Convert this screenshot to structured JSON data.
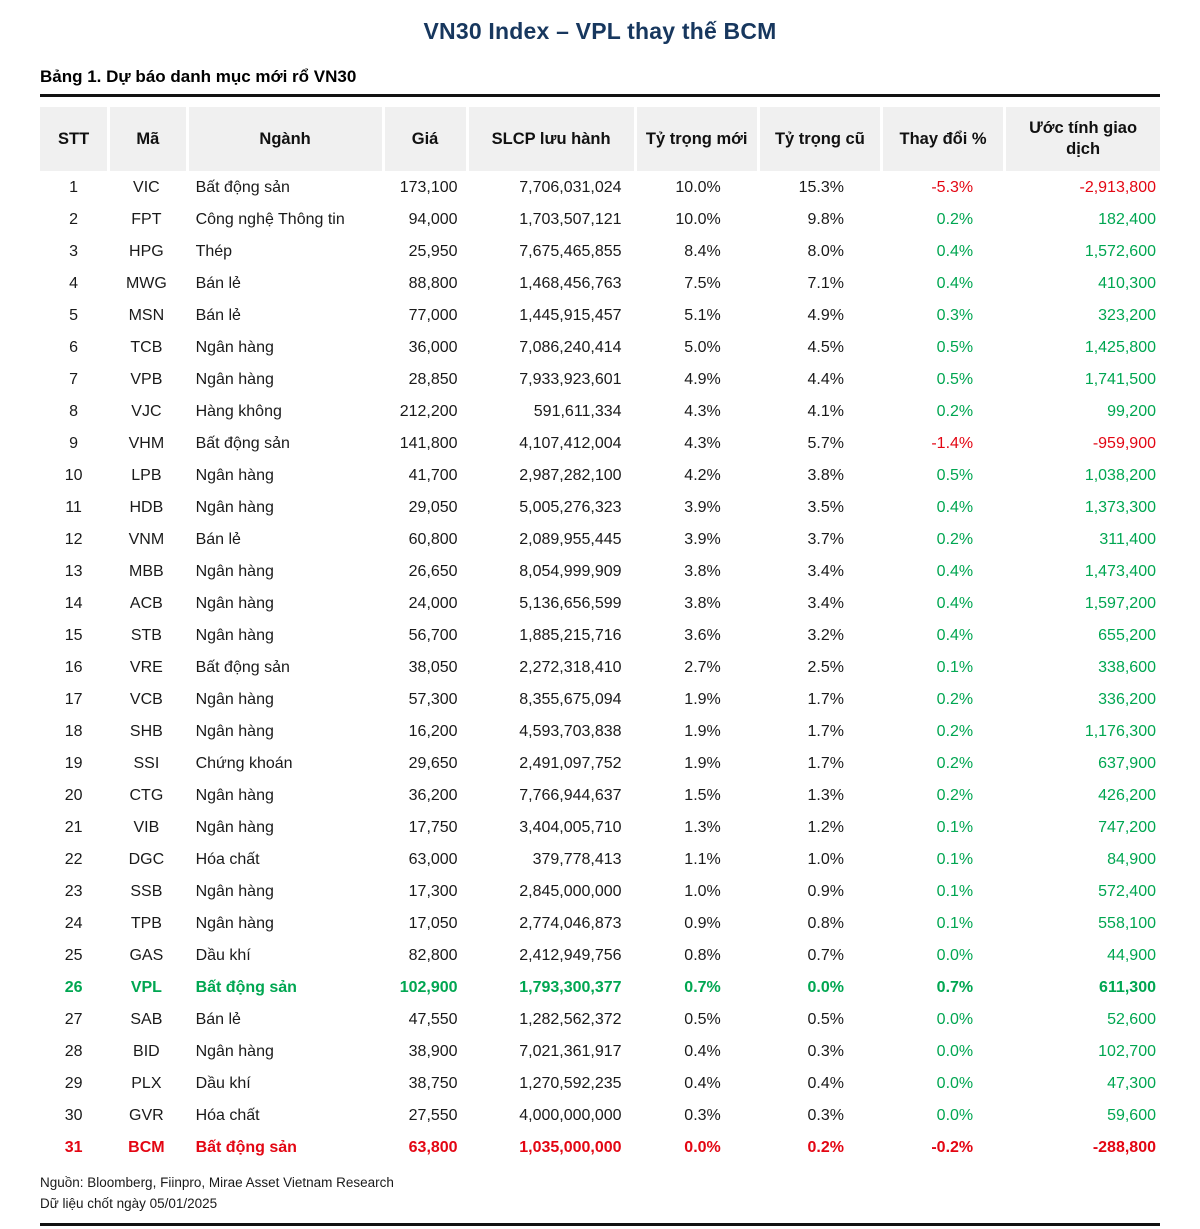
{
  "page": {
    "title": "VN30 Index – VPL thay thế BCM",
    "table_caption": "Bảng 1. Dự báo danh mục mới rổ VN30",
    "source": "Nguồn: Bloomberg, Fiinpro, Mirae Asset Vietnam Research",
    "data_date": "Dữ liệu chốt ngày 05/01/2025"
  },
  "colors": {
    "title_navy": "#17375e",
    "positive_green": "#00a651",
    "negative_red": "#e30613",
    "header_bg": "#f0f0f0"
  },
  "table": {
    "headers": [
      "STT",
      "Mã",
      "Ngành",
      "Giá",
      "SLCP lưu hành",
      "Tỷ trọng mới",
      "Tỷ trọng cũ",
      "Thay đổi %",
      "Ước tính giao dịch"
    ],
    "rows": [
      {
        "stt": "1",
        "ma": "VIC",
        "nganh": "Bất động sản",
        "gia": "173,100",
        "slcp": "7,706,031,024",
        "moi": "10.0%",
        "cu": "15.3%",
        "doi": "-5.3%",
        "uoc": "-2,913,800",
        "trend": "down",
        "highlight": ""
      },
      {
        "stt": "2",
        "ma": "FPT",
        "nganh": "Công nghệ Thông tin",
        "gia": "94,000",
        "slcp": "1,703,507,121",
        "moi": "10.0%",
        "cu": "9.8%",
        "doi": "0.2%",
        "uoc": "182,400",
        "trend": "up",
        "highlight": ""
      },
      {
        "stt": "3",
        "ma": "HPG",
        "nganh": "Thép",
        "gia": "25,950",
        "slcp": "7,675,465,855",
        "moi": "8.4%",
        "cu": "8.0%",
        "doi": "0.4%",
        "uoc": "1,572,600",
        "trend": "up",
        "highlight": ""
      },
      {
        "stt": "4",
        "ma": "MWG",
        "nganh": "Bán lẻ",
        "gia": "88,800",
        "slcp": "1,468,456,763",
        "moi": "7.5%",
        "cu": "7.1%",
        "doi": "0.4%",
        "uoc": "410,300",
        "trend": "up",
        "highlight": ""
      },
      {
        "stt": "5",
        "ma": "MSN",
        "nganh": "Bán lẻ",
        "gia": "77,000",
        "slcp": "1,445,915,457",
        "moi": "5.1%",
        "cu": "4.9%",
        "doi": "0.3%",
        "uoc": "323,200",
        "trend": "up",
        "highlight": ""
      },
      {
        "stt": "6",
        "ma": "TCB",
        "nganh": "Ngân hàng",
        "gia": "36,000",
        "slcp": "7,086,240,414",
        "moi": "5.0%",
        "cu": "4.5%",
        "doi": "0.5%",
        "uoc": "1,425,800",
        "trend": "up",
        "highlight": ""
      },
      {
        "stt": "7",
        "ma": "VPB",
        "nganh": "Ngân hàng",
        "gia": "28,850",
        "slcp": "7,933,923,601",
        "moi": "4.9%",
        "cu": "4.4%",
        "doi": "0.5%",
        "uoc": "1,741,500",
        "trend": "up",
        "highlight": ""
      },
      {
        "stt": "8",
        "ma": "VJC",
        "nganh": "Hàng không",
        "gia": "212,200",
        "slcp": "591,611,334",
        "moi": "4.3%",
        "cu": "4.1%",
        "doi": "0.2%",
        "uoc": "99,200",
        "trend": "up",
        "highlight": ""
      },
      {
        "stt": "9",
        "ma": "VHM",
        "nganh": "Bất động sản",
        "gia": "141,800",
        "slcp": "4,107,412,004",
        "moi": "4.3%",
        "cu": "5.7%",
        "doi": "-1.4%",
        "uoc": "-959,900",
        "trend": "down",
        "highlight": ""
      },
      {
        "stt": "10",
        "ma": "LPB",
        "nganh": "Ngân hàng",
        "gia": "41,700",
        "slcp": "2,987,282,100",
        "moi": "4.2%",
        "cu": "3.8%",
        "doi": "0.5%",
        "uoc": "1,038,200",
        "trend": "up",
        "highlight": ""
      },
      {
        "stt": "11",
        "ma": "HDB",
        "nganh": "Ngân hàng",
        "gia": "29,050",
        "slcp": "5,005,276,323",
        "moi": "3.9%",
        "cu": "3.5%",
        "doi": "0.4%",
        "uoc": "1,373,300",
        "trend": "up",
        "highlight": ""
      },
      {
        "stt": "12",
        "ma": "VNM",
        "nganh": "Bán lẻ",
        "gia": "60,800",
        "slcp": "2,089,955,445",
        "moi": "3.9%",
        "cu": "3.7%",
        "doi": "0.2%",
        "uoc": "311,400",
        "trend": "up",
        "highlight": ""
      },
      {
        "stt": "13",
        "ma": "MBB",
        "nganh": "Ngân hàng",
        "gia": "26,650",
        "slcp": "8,054,999,909",
        "moi": "3.8%",
        "cu": "3.4%",
        "doi": "0.4%",
        "uoc": "1,473,400",
        "trend": "up",
        "highlight": ""
      },
      {
        "stt": "14",
        "ma": "ACB",
        "nganh": "Ngân hàng",
        "gia": "24,000",
        "slcp": "5,136,656,599",
        "moi": "3.8%",
        "cu": "3.4%",
        "doi": "0.4%",
        "uoc": "1,597,200",
        "trend": "up",
        "highlight": ""
      },
      {
        "stt": "15",
        "ma": "STB",
        "nganh": "Ngân hàng",
        "gia": "56,700",
        "slcp": "1,885,215,716",
        "moi": "3.6%",
        "cu": "3.2%",
        "doi": "0.4%",
        "uoc": "655,200",
        "trend": "up",
        "highlight": ""
      },
      {
        "stt": "16",
        "ma": "VRE",
        "nganh": "Bất động sản",
        "gia": "38,050",
        "slcp": "2,272,318,410",
        "moi": "2.7%",
        "cu": "2.5%",
        "doi": "0.1%",
        "uoc": "338,600",
        "trend": "up",
        "highlight": ""
      },
      {
        "stt": "17",
        "ma": "VCB",
        "nganh": "Ngân hàng",
        "gia": "57,300",
        "slcp": "8,355,675,094",
        "moi": "1.9%",
        "cu": "1.7%",
        "doi": "0.2%",
        "uoc": "336,200",
        "trend": "up",
        "highlight": ""
      },
      {
        "stt": "18",
        "ma": "SHB",
        "nganh": "Ngân hàng",
        "gia": "16,200",
        "slcp": "4,593,703,838",
        "moi": "1.9%",
        "cu": "1.7%",
        "doi": "0.2%",
        "uoc": "1,176,300",
        "trend": "up",
        "highlight": ""
      },
      {
        "stt": "19",
        "ma": "SSI",
        "nganh": "Chứng khoán",
        "gia": "29,650",
        "slcp": "2,491,097,752",
        "moi": "1.9%",
        "cu": "1.7%",
        "doi": "0.2%",
        "uoc": "637,900",
        "trend": "up",
        "highlight": ""
      },
      {
        "stt": "20",
        "ma": "CTG",
        "nganh": "Ngân hàng",
        "gia": "36,200",
        "slcp": "7,766,944,637",
        "moi": "1.5%",
        "cu": "1.3%",
        "doi": "0.2%",
        "uoc": "426,200",
        "trend": "up",
        "highlight": ""
      },
      {
        "stt": "21",
        "ma": "VIB",
        "nganh": "Ngân hàng",
        "gia": "17,750",
        "slcp": "3,404,005,710",
        "moi": "1.3%",
        "cu": "1.2%",
        "doi": "0.1%",
        "uoc": "747,200",
        "trend": "up",
        "highlight": ""
      },
      {
        "stt": "22",
        "ma": "DGC",
        "nganh": "Hóa chất",
        "gia": "63,000",
        "slcp": "379,778,413",
        "moi": "1.1%",
        "cu": "1.0%",
        "doi": "0.1%",
        "uoc": "84,900",
        "trend": "up",
        "highlight": ""
      },
      {
        "stt": "23",
        "ma": "SSB",
        "nganh": "Ngân hàng",
        "gia": "17,300",
        "slcp": "2,845,000,000",
        "moi": "1.0%",
        "cu": "0.9%",
        "doi": "0.1%",
        "uoc": "572,400",
        "trend": "up",
        "highlight": ""
      },
      {
        "stt": "24",
        "ma": "TPB",
        "nganh": "Ngân hàng",
        "gia": "17,050",
        "slcp": "2,774,046,873",
        "moi": "0.9%",
        "cu": "0.8%",
        "doi": "0.1%",
        "uoc": "558,100",
        "trend": "up",
        "highlight": ""
      },
      {
        "stt": "25",
        "ma": "GAS",
        "nganh": "Dầu khí",
        "gia": "82,800",
        "slcp": "2,412,949,756",
        "moi": "0.8%",
        "cu": "0.7%",
        "doi": "0.0%",
        "uoc": "44,900",
        "trend": "up",
        "highlight": ""
      },
      {
        "stt": "26",
        "ma": "VPL",
        "nganh": "Bất động sản",
        "gia": "102,900",
        "slcp": "1,793,300,377",
        "moi": "0.7%",
        "cu": "0.0%",
        "doi": "0.7%",
        "uoc": "611,300",
        "trend": "up",
        "highlight": "green"
      },
      {
        "stt": "27",
        "ma": "SAB",
        "nganh": "Bán lẻ",
        "gia": "47,550",
        "slcp": "1,282,562,372",
        "moi": "0.5%",
        "cu": "0.5%",
        "doi": "0.0%",
        "uoc": "52,600",
        "trend": "up",
        "highlight": ""
      },
      {
        "stt": "28",
        "ma": "BID",
        "nganh": "Ngân hàng",
        "gia": "38,900",
        "slcp": "7,021,361,917",
        "moi": "0.4%",
        "cu": "0.3%",
        "doi": "0.0%",
        "uoc": "102,700",
        "trend": "up",
        "highlight": ""
      },
      {
        "stt": "29",
        "ma": "PLX",
        "nganh": "Dầu khí",
        "gia": "38,750",
        "slcp": "1,270,592,235",
        "moi": "0.4%",
        "cu": "0.4%",
        "doi": "0.0%",
        "uoc": "47,300",
        "trend": "up",
        "highlight": ""
      },
      {
        "stt": "30",
        "ma": "GVR",
        "nganh": "Hóa chất",
        "gia": "27,550",
        "slcp": "4,000,000,000",
        "moi": "0.3%",
        "cu": "0.3%",
        "doi": "0.0%",
        "uoc": "59,600",
        "trend": "up",
        "highlight": ""
      },
      {
        "stt": "31",
        "ma": "BCM",
        "nganh": "Bất động sản",
        "gia": "63,800",
        "slcp": "1,035,000,000",
        "moi": "0.0%",
        "cu": "0.2%",
        "doi": "-0.2%",
        "uoc": "-288,800",
        "trend": "down",
        "highlight": "red"
      }
    ]
  }
}
